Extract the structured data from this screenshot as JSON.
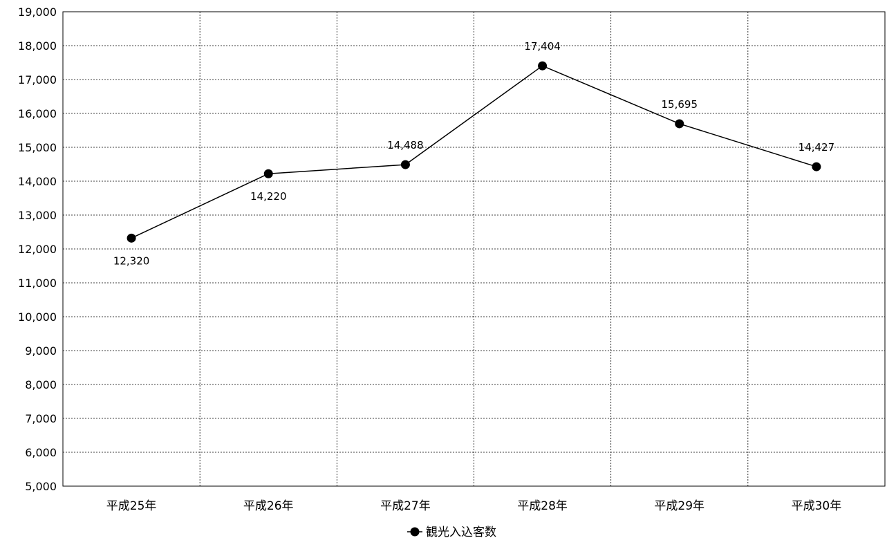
{
  "chart_data": {
    "type": "line",
    "title": "",
    "xlabel": "",
    "ylabel": "",
    "categories": [
      "平成25年",
      "平成26年",
      "平成27年",
      "平成28年",
      "平成29年",
      "平成30年"
    ],
    "series": [
      {
        "name": "観光入込客数",
        "values": [
          12320,
          14220,
          14488,
          17404,
          15695,
          14427
        ],
        "value_labels": [
          "12,320",
          "14,220",
          "14,488",
          "17,404",
          "15,695",
          "14,427"
        ],
        "label_positions": [
          "below",
          "below",
          "above",
          "above",
          "above",
          "above"
        ],
        "color": "#000000",
        "marker": "filled-circle"
      }
    ],
    "ylim": [
      5000,
      19000
    ],
    "ytick_step": 1000,
    "ytick_labels": [
      "5,000",
      "6,000",
      "7,000",
      "8,000",
      "9,000",
      "10,000",
      "11,000",
      "12,000",
      "13,000",
      "14,000",
      "15,000",
      "16,000",
      "17,000",
      "18,000",
      "19,000"
    ],
    "grid": true,
    "grid_style": "dashed",
    "legend_position": "bottom"
  }
}
